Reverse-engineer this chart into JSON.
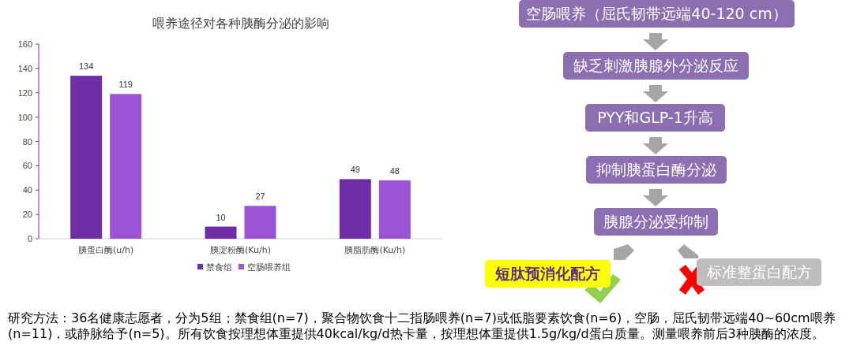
{
  "chart_data": [
    {
      "type": "bar",
      "title": "喂养途径对各种胰酶分泌的影响",
      "categories": [
        "胰蛋白酶(u/h)",
        "胰淀粉酶(Ku/h)",
        "胰脂肪酶(Ku/h)"
      ],
      "series": [
        {
          "name": "禁食组",
          "color": "#6f2da8",
          "values": [
            134,
            10,
            49
          ]
        },
        {
          "name": "空肠喂养组",
          "color": "#9b55d4",
          "values": [
            119,
            27,
            48
          ]
        }
      ],
      "ylim": [
        0,
        160
      ],
      "yticks": [
        0,
        20,
        40,
        60,
        80,
        100,
        120,
        140,
        160
      ],
      "data_labels": true,
      "legend": "bottom",
      "annotations": [
        "研究方法：36名健康志愿者，分为5组；禁食组(n=7)，聚合物饮食十二指肠喂养(n=7)或低脂要素饮食(n=6)，空肠，屈氏韧带远端40~60cm喂养(n=11)，或静脉给予(n=5)。所有饮食按理想体重提供40kcal/kg/d热卡量，按理想体重提供1.5g/kg/d蛋白质量。测量喂养前后3种胰酶的浓度。"
      ]
    },
    {
      "type": "other",
      "annotations": [
        "空肠喂养（屈氏韧带远端40-120 cm）",
        "缺乏刺激胰腺外分泌反应",
        "PYY和GLP-1升高",
        "抑制胰蛋白酶分泌",
        "胰腺分泌受抑制",
        "短肽预消化配方",
        "标准整蛋白配方"
      ]
    }
  ]
}
